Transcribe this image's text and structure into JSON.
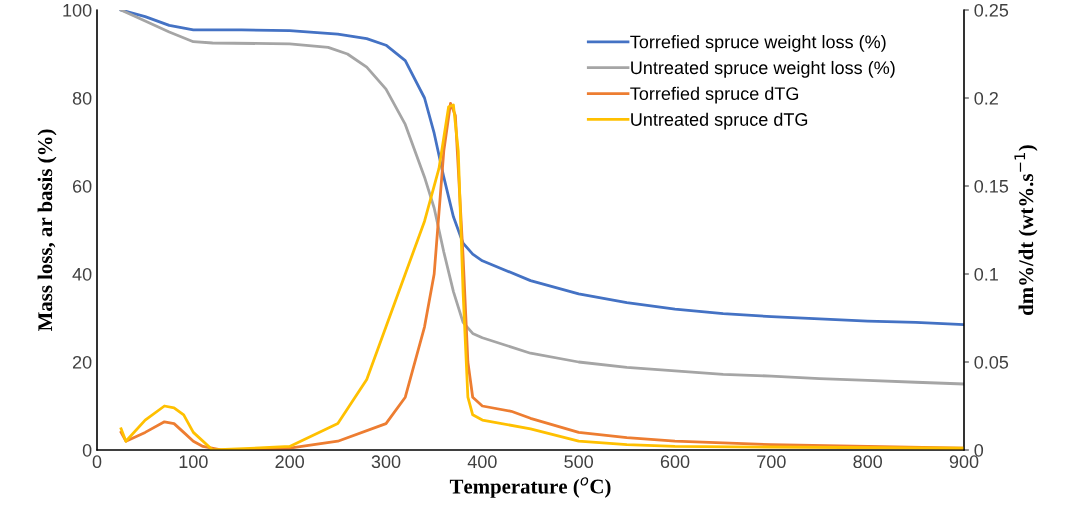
{
  "chart_data": {
    "type": "line",
    "xlabel": "Temperature ($^{o}$C)",
    "ylabel": "Mass loss, ar basis (%)",
    "y2label": "dm%/dt (wt%.s$^{−1}$)",
    "xlim": [
      0,
      900
    ],
    "xticks": [
      0,
      100,
      200,
      300,
      400,
      500,
      600,
      700,
      800,
      900
    ],
    "ylim": [
      0,
      100
    ],
    "yticks": [
      0,
      20,
      40,
      60,
      80,
      100
    ],
    "y2lim": [
      0,
      0.25
    ],
    "y2ticks": [
      0,
      0.05,
      0.1,
      0.15,
      0.2,
      0.25
    ],
    "legend": "top right",
    "grid": false,
    "marker": "none",
    "line_style": "solid",
    "series": [
      {
        "name": "Torrefied spruce weight loss (%)",
        "color": "#4472c4",
        "x": [
          25,
          50,
          75,
          100,
          150,
          200,
          250,
          280,
          300,
          320,
          340,
          350,
          360,
          370,
          380,
          390,
          400,
          450,
          500,
          550,
          600,
          650,
          700,
          750,
          800,
          850,
          900
        ],
        "values": [
          100,
          98.5,
          96.5,
          95.5,
          95.5,
          95.3,
          94.5,
          93.5,
          92,
          88.5,
          80,
          72,
          62,
          53,
          47,
          44.5,
          43,
          38.5,
          35.5,
          33.5,
          32,
          31,
          30.3,
          29.8,
          29.3,
          29,
          28.5
        ]
      },
      {
        "name": "Untreated spruce weight loss (%)",
        "color": "#a5a5a5",
        "x": [
          25,
          50,
          75,
          100,
          120,
          200,
          240,
          260,
          280,
          300,
          320,
          340,
          350,
          360,
          370,
          380,
          390,
          400,
          450,
          500,
          550,
          600,
          650,
          700,
          750,
          800,
          850,
          900
        ],
        "values": [
          100,
          97.5,
          95,
          92.8,
          92.5,
          92.3,
          91.5,
          90,
          87,
          82,
          74,
          62,
          55,
          45,
          36,
          29,
          26.5,
          25.5,
          22,
          20,
          18.8,
          18,
          17.2,
          16.8,
          16.2,
          15.8,
          15.4,
          15
        ]
      },
      {
        "name": "Torrefied spruce dTG",
        "color": "#ed7d31",
        "axis": "y2",
        "x": [
          25,
          30,
          50,
          70,
          80,
          90,
          100,
          110,
          130,
          200,
          250,
          300,
          320,
          340,
          350,
          360,
          367,
          372,
          380,
          385,
          390,
          400,
          430,
          450,
          500,
          550,
          600,
          700,
          800,
          900
        ],
        "values": [
          0.01,
          0.005,
          0.01,
          0.016,
          0.015,
          0.01,
          0.005,
          0.002,
          0,
          0.001,
          0.005,
          0.015,
          0.03,
          0.07,
          0.1,
          0.17,
          0.197,
          0.19,
          0.11,
          0.05,
          0.03,
          0.025,
          0.022,
          0.018,
          0.01,
          0.007,
          0.005,
          0.003,
          0.002,
          0.001
        ]
      },
      {
        "name": "Untreated spruce dTG",
        "color": "#ffc000",
        "axis": "y2",
        "x": [
          25,
          30,
          50,
          70,
          80,
          90,
          100,
          120,
          200,
          250,
          280,
          300,
          320,
          340,
          355,
          365,
          370,
          375,
          380,
          385,
          390,
          400,
          450,
          500,
          550,
          600,
          900
        ],
        "values": [
          0.012,
          0.005,
          0.017,
          0.025,
          0.024,
          0.02,
          0.01,
          0,
          0.002,
          0.015,
          0.04,
          0.07,
          0.1,
          0.13,
          0.16,
          0.195,
          0.196,
          0.17,
          0.09,
          0.03,
          0.02,
          0.017,
          0.012,
          0.005,
          0.003,
          0.002,
          0.001
        ]
      }
    ]
  }
}
